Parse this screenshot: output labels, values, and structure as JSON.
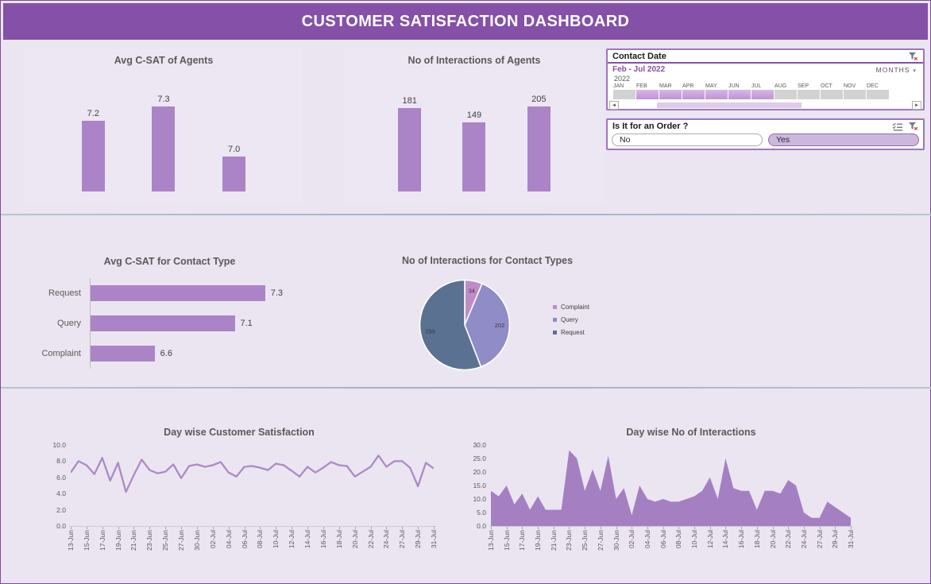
{
  "header": {
    "title": "CUSTOMER SATISFACTION DASHBOARD"
  },
  "colors": {
    "header_bg": "#8550a7",
    "page_bg": "#ebe5f1",
    "bar_fill": "#ab84c7",
    "line_stroke": "#ab8ac8",
    "area_fill": "#a480c2",
    "pie_complaint": "#bf8cc8",
    "pie_query": "#908cc8",
    "pie_request": "#5a7191",
    "timeline_selected": "#c9a0dc",
    "timeline_unselected": "#d2d2d2"
  },
  "icons": {
    "clear_filter": "funnel-x",
    "multi_select": "checklist",
    "dropdown_arrow": "▾",
    "scroll_left": "◄",
    "scroll_right": "►"
  },
  "timeline": {
    "title": "Contact Date",
    "selection_label": "Feb - Jul 2022",
    "period_label": "MONTHS",
    "year_label": "2022",
    "months": [
      "JAN",
      "FEB",
      "MAR",
      "APR",
      "MAY",
      "JUN",
      "JUL",
      "AUG",
      "SEP",
      "OCT",
      "NOV",
      "DEC"
    ],
    "selected_months": [
      "FEB",
      "MAR",
      "APR",
      "MAY",
      "JUN",
      "JUL"
    ]
  },
  "order_slicer": {
    "title": "Is It for an Order ?",
    "options": [
      {
        "label": "No",
        "selected": false
      },
      {
        "label": "Yes",
        "selected": true
      }
    ]
  },
  "chart_data": [
    {
      "id": "avg-csat-agents",
      "type": "bar",
      "title": "Avg C-SAT of Agents",
      "categories": [
        "",
        "",
        ""
      ],
      "values": [
        7.2,
        7.3,
        7.0
      ],
      "labels": [
        "7.2",
        "7.3",
        "7.0"
      ],
      "ylim": [
        6.8,
        7.35
      ],
      "grid": false,
      "bar_color": "#ab84c7"
    },
    {
      "id": "interactions-agents",
      "type": "bar",
      "title": "No of Interactions of Agents",
      "categories": [
        "",
        "",
        ""
      ],
      "values": [
        181,
        149,
        205
      ],
      "labels": [
        "181",
        "149",
        "205"
      ],
      "ylim": [
        0,
        210
      ],
      "grid": false,
      "bar_color": "#ab84c7"
    },
    {
      "id": "avg-csat-contact-type",
      "type": "hbar",
      "title": "Avg C-SAT for Contact Type",
      "categories": [
        "Request",
        "Query",
        "Complaint"
      ],
      "values": [
        7.3,
        7.1,
        6.6
      ],
      "labels": [
        "7.3",
        "7.1",
        "6.6"
      ],
      "xlim": [
        6.2,
        7.4
      ],
      "grid": false,
      "bar_color": "#ab84c7"
    },
    {
      "id": "interactions-contact-types",
      "type": "pie",
      "title": "No of Interactions for Contact Types",
      "categories": [
        "Complaint",
        "Query",
        "Request"
      ],
      "values": [
        34,
        202,
        299
      ],
      "labels": [
        "34",
        "202",
        "299"
      ],
      "colors": [
        "#bf8cc8",
        "#908cc8",
        "#5a7191"
      ],
      "legend_position": "right"
    },
    {
      "id": "daywise-csat",
      "type": "line",
      "title": "Day wise Customer Satisfaction",
      "x_labels": [
        "13-Jun",
        "15-Jun",
        "17-Jun",
        "19-Jun",
        "21-Jun",
        "23-Jun",
        "25-Jun",
        "27-Jun",
        "30-Jun",
        "02-Jul",
        "04-Jul",
        "06-Jul",
        "08-Jul",
        "10-Jul",
        "12-Jul",
        "14-Jul",
        "16-Jul",
        "18-Jul",
        "20-Jul",
        "22-Jul",
        "24-Jul",
        "27-Jul",
        "29-Jul",
        "31-Jul"
      ],
      "values": [
        6.6,
        8.0,
        7.5,
        6.4,
        8.4,
        5.6,
        7.8,
        4.2,
        6.3,
        8.2,
        6.9,
        6.5,
        6.7,
        7.6,
        5.9,
        7.4,
        7.6,
        7.3,
        7.5,
        7.9,
        6.6,
        6.1,
        7.3,
        7.4,
        7.2,
        6.9,
        7.7,
        7.5,
        6.8,
        6.1,
        7.3,
        6.6,
        7.2,
        7.9,
        7.5,
        7.4,
        6.1,
        6.7,
        7.3,
        8.7,
        7.3,
        8.0,
        8.0,
        7.2,
        4.9,
        7.8,
        7.1
      ],
      "ylim": [
        0,
        10
      ],
      "yticks": [
        10,
        8,
        6,
        4,
        2,
        0
      ],
      "ytick_labels": [
        "10.0",
        "8.0",
        "6.0",
        "4.0",
        "2.0",
        "0.0"
      ],
      "grid": false,
      "color": "#ab8ac8"
    },
    {
      "id": "daywise-interactions",
      "type": "area",
      "title": "Day wise No of Interactions",
      "x_labels": [
        "13-Jun",
        "15-Jun",
        "17-Jun",
        "19-Jun",
        "21-Jun",
        "23-Jun",
        "25-Jun",
        "27-Jun",
        "30-Jun",
        "02-Jul",
        "04-Jul",
        "06-Jul",
        "08-Jul",
        "10-Jul",
        "12-Jul",
        "14-Jul",
        "16-Jul",
        "18-Jul",
        "20-Jul",
        "22-Jul",
        "24-Jul",
        "27-Jul",
        "29-Jul",
        "31-Jul"
      ],
      "values": [
        13,
        11,
        15,
        8,
        12,
        6,
        11,
        6,
        6,
        6,
        28,
        25,
        13,
        21,
        13,
        26,
        10,
        14,
        4,
        15,
        10,
        9,
        10,
        9,
        9,
        10,
        11,
        13,
        18,
        10,
        25,
        14,
        13,
        13,
        6,
        13,
        13,
        12,
        17,
        15,
        5,
        3,
        3,
        9,
        7,
        5,
        3
      ],
      "ylim": [
        0,
        30
      ],
      "yticks": [
        30,
        25,
        20,
        15,
        10,
        5,
        0
      ],
      "ytick_labels": [
        "30.0",
        "25.0",
        "20.0",
        "15.0",
        "10.0",
        "5.0",
        "0.0"
      ],
      "grid": false,
      "color": "#a480c2"
    }
  ]
}
